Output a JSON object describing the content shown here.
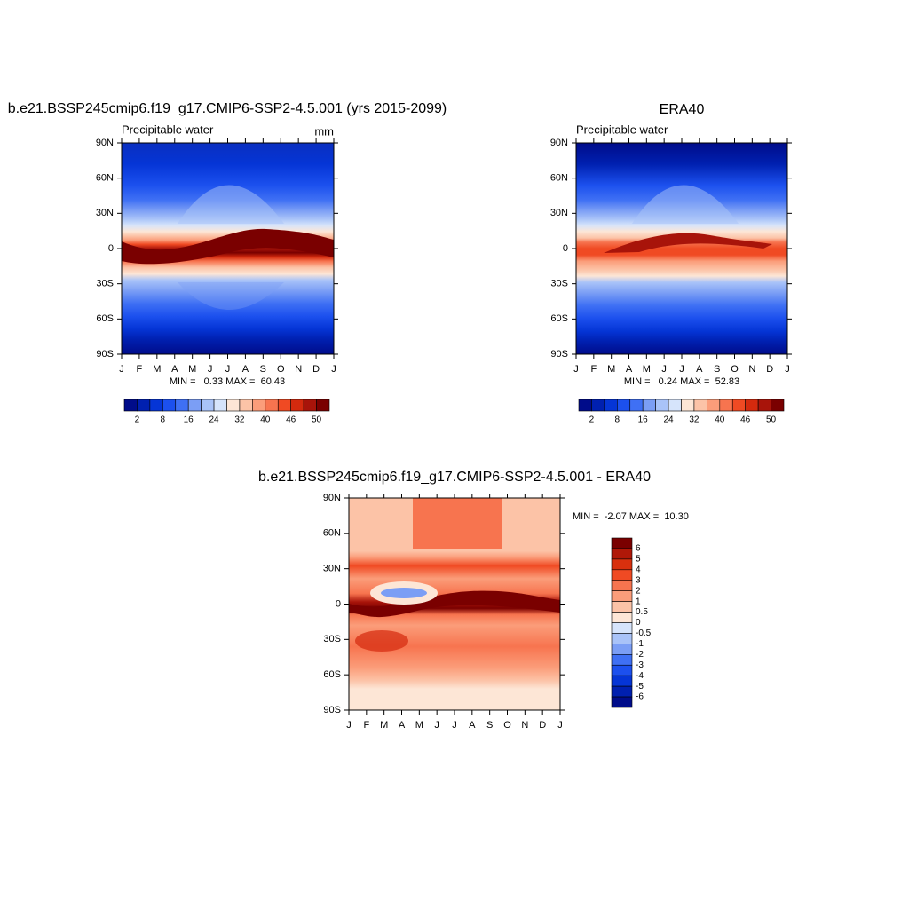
{
  "chart_data": [
    {
      "type": "contour",
      "title": "b.e21.BSSP245cmip6.f19_g17.CMIP6-SSP2-4.5.001 (yrs 2015-2099)",
      "subtitle": "Precipitable water",
      "units": "mm",
      "categories": [
        "J",
        "F",
        "M",
        "A",
        "M",
        "J",
        "J",
        "A",
        "S",
        "O",
        "N",
        "D",
        "J"
      ],
      "ylim": [
        -90,
        90
      ],
      "yticks": [
        {
          "value": 90,
          "label": "90N"
        },
        {
          "value": 60,
          "label": "60N"
        },
        {
          "value": 30,
          "label": "30N"
        },
        0,
        {
          "value": -30,
          "label": "30S"
        },
        {
          "value": -60,
          "label": "60S"
        },
        {
          "value": -90,
          "label": "90S"
        }
      ],
      "stats": "MIN =   0.33 MAX =  60.43",
      "colorbar": {
        "orientation": "horizontal",
        "colors": [
          "#000c8a",
          "#0020b0",
          "#0535d6",
          "#1c50ee",
          "#3f70f4",
          "#7b9ef5",
          "#a9c3f8",
          "#d6e4fb",
          "#fde6d6",
          "#fcc3a7",
          "#fb9d7a",
          "#f7744f",
          "#f04a23",
          "#d42a0e",
          "#a8140a",
          "#7a0000"
        ],
        "ticks": [
          2,
          8,
          16,
          24,
          32,
          40,
          46,
          50
        ]
      }
    },
    {
      "type": "contour",
      "title": "ERA40",
      "subtitle": "Precipitable water",
      "categories": [
        "J",
        "F",
        "M",
        "A",
        "M",
        "J",
        "J",
        "A",
        "S",
        "O",
        "N",
        "D",
        "J"
      ],
      "ylim": [
        -90,
        90
      ],
      "yticks": [
        {
          "value": 90,
          "label": "90N"
        },
        {
          "value": 60,
          "label": "60N"
        },
        {
          "value": 30,
          "label": "30N"
        },
        0,
        {
          "value": -30,
          "label": "30S"
        },
        {
          "value": -60,
          "label": "60S"
        },
        {
          "value": -90,
          "label": "90S"
        }
      ],
      "stats": "MIN =   0.24 MAX =  52.83",
      "colorbar": {
        "orientation": "horizontal",
        "colors": [
          "#000c8a",
          "#0020b0",
          "#0535d6",
          "#1c50ee",
          "#3f70f4",
          "#7b9ef5",
          "#a9c3f8",
          "#d6e4fb",
          "#fde6d6",
          "#fcc3a7",
          "#fb9d7a",
          "#f7744f",
          "#f04a23",
          "#d42a0e",
          "#a8140a",
          "#7a0000"
        ],
        "ticks": [
          2,
          8,
          16,
          24,
          32,
          40,
          46,
          50
        ]
      }
    },
    {
      "type": "contour",
      "title": "b.e21.BSSP245cmip6.f19_g17.CMIP6-SSP2-4.5.001 - ERA40",
      "categories": [
        "J",
        "F",
        "M",
        "A",
        "M",
        "J",
        "J",
        "A",
        "S",
        "O",
        "N",
        "D",
        "J"
      ],
      "ylim": [
        -90,
        90
      ],
      "yticks": [
        {
          "value": 90,
          "label": "90N"
        },
        {
          "value": 60,
          "label": "60N"
        },
        {
          "value": 30,
          "label": "30N"
        },
        0,
        {
          "value": -30,
          "label": "30S"
        },
        {
          "value": -60,
          "label": "60S"
        },
        {
          "value": -90,
          "label": "90S"
        }
      ],
      "stats": "MIN =  -2.07 MAX =  10.30",
      "colorbar": {
        "orientation": "vertical",
        "colors": [
          "#7a0000",
          "#b01808",
          "#d8300e",
          "#f04a23",
          "#f7744f",
          "#fb9d7a",
          "#fcc3a7",
          "#fde6d6",
          "#d6e4fb",
          "#a9c3f8",
          "#7b9ef5",
          "#3f70f4",
          "#1c50ee",
          "#0535d6",
          "#0020b0",
          "#000c8a"
        ],
        "ticks": [
          6,
          5,
          4,
          3,
          2,
          1,
          0.5,
          0,
          -0.5,
          -1,
          -2,
          -3,
          -4,
          -5,
          -6
        ]
      }
    }
  ]
}
